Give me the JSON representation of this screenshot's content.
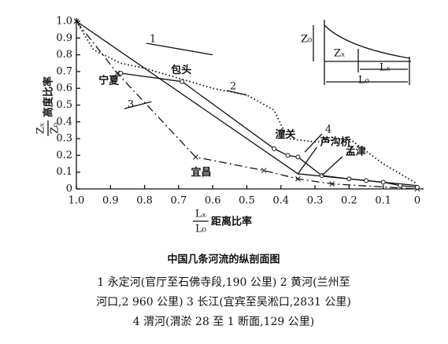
{
  "chart_data": {
    "type": "line",
    "xlim": [
      1,
      0
    ],
    "ylim": [
      0,
      1
    ],
    "xticks": [
      {
        "value": 1,
        "label": "1.0"
      },
      0.9,
      0.8,
      0.7,
      0.6,
      0.5,
      0.4,
      0.3,
      0.2,
      0.1,
      0
    ],
    "yticks": [
      0,
      0.1,
      0.2,
      0.3,
      0.4,
      0.5,
      0.6,
      0.7,
      0.8,
      0.9,
      {
        "value": 1,
        "label": "1.0"
      }
    ],
    "x_label": {
      "top": "Lₓ",
      "bottom": "L₀",
      "text": "距离比率"
    },
    "y_label": {
      "top": "Zₓ",
      "bottom": "Z₀",
      "text": "高度比率"
    },
    "series": [
      {
        "name": "1",
        "color": "#111",
        "style": "solid",
        "marker": "none",
        "x": [
          1,
          0.35,
          0
        ],
        "values": [
          1,
          0.09,
          0.02
        ]
      },
      {
        "name": "2",
        "color": "#111",
        "style": "dotted",
        "marker": "none",
        "x": [
          1,
          0.95,
          0.87,
          0.8,
          0.7,
          0.6,
          0.5,
          0.42,
          0.38,
          0.3,
          0.2,
          0.1,
          0
        ],
        "values": [
          1,
          0.83,
          0.75,
          0.72,
          0.66,
          0.6,
          0.56,
          0.47,
          0.3,
          0.28,
          0.3,
          0.15,
          0.03
        ]
      },
      {
        "name": "3",
        "color": "#111",
        "style": "dashdot",
        "marker": "x",
        "x": [
          1,
          0.88,
          0.65,
          0.45,
          0.35,
          0.25,
          0
        ],
        "values": [
          1,
          0.69,
          0.19,
          0.11,
          0.06,
          0.03,
          0
        ]
      },
      {
        "name": "4",
        "color": "#111",
        "style": "solid",
        "marker": "circle",
        "x": [
          0.87,
          0.69,
          0.42,
          0.38,
          0.35,
          0.28,
          0.2,
          0.15,
          0.1,
          0.05,
          0
        ],
        "values": [
          0.69,
          0.64,
          0.24,
          0.2,
          0.19,
          0.08,
          0.06,
          0.05,
          0.04,
          0.02,
          0.01
        ]
      }
    ],
    "annotations": [
      {
        "text": "宁夏",
        "x": 0.87,
        "y": 0.69
      },
      {
        "text": "包头",
        "x": 0.69,
        "y": 0.64
      },
      {
        "text": "潼关",
        "x": 0.38,
        "y": 0.2
      },
      {
        "text": "芦沟桥",
        "x": 0.35,
        "y": 0.09
      },
      {
        "text": "孟津",
        "x": 0.28,
        "y": 0.08
      },
      {
        "text": "宜昌",
        "x": 0.65,
        "y": 0.19
      }
    ],
    "inset": {
      "z0": "Z₀",
      "zx": "Zₓ",
      "lx": "Lₓ",
      "l0": "L₀"
    },
    "caption": {
      "title": "中国几条河流的纵剖面图",
      "lines": [
        "1 永定河(官厅至石佛寺段,190 公里)  2 黄河(兰州至",
        "河口,2 960 公里)  3 长江(宜宾至吴淞口,2831 公里)",
        "4 渭河(渭淤 28 至 1 断面,129 公里)"
      ]
    }
  }
}
